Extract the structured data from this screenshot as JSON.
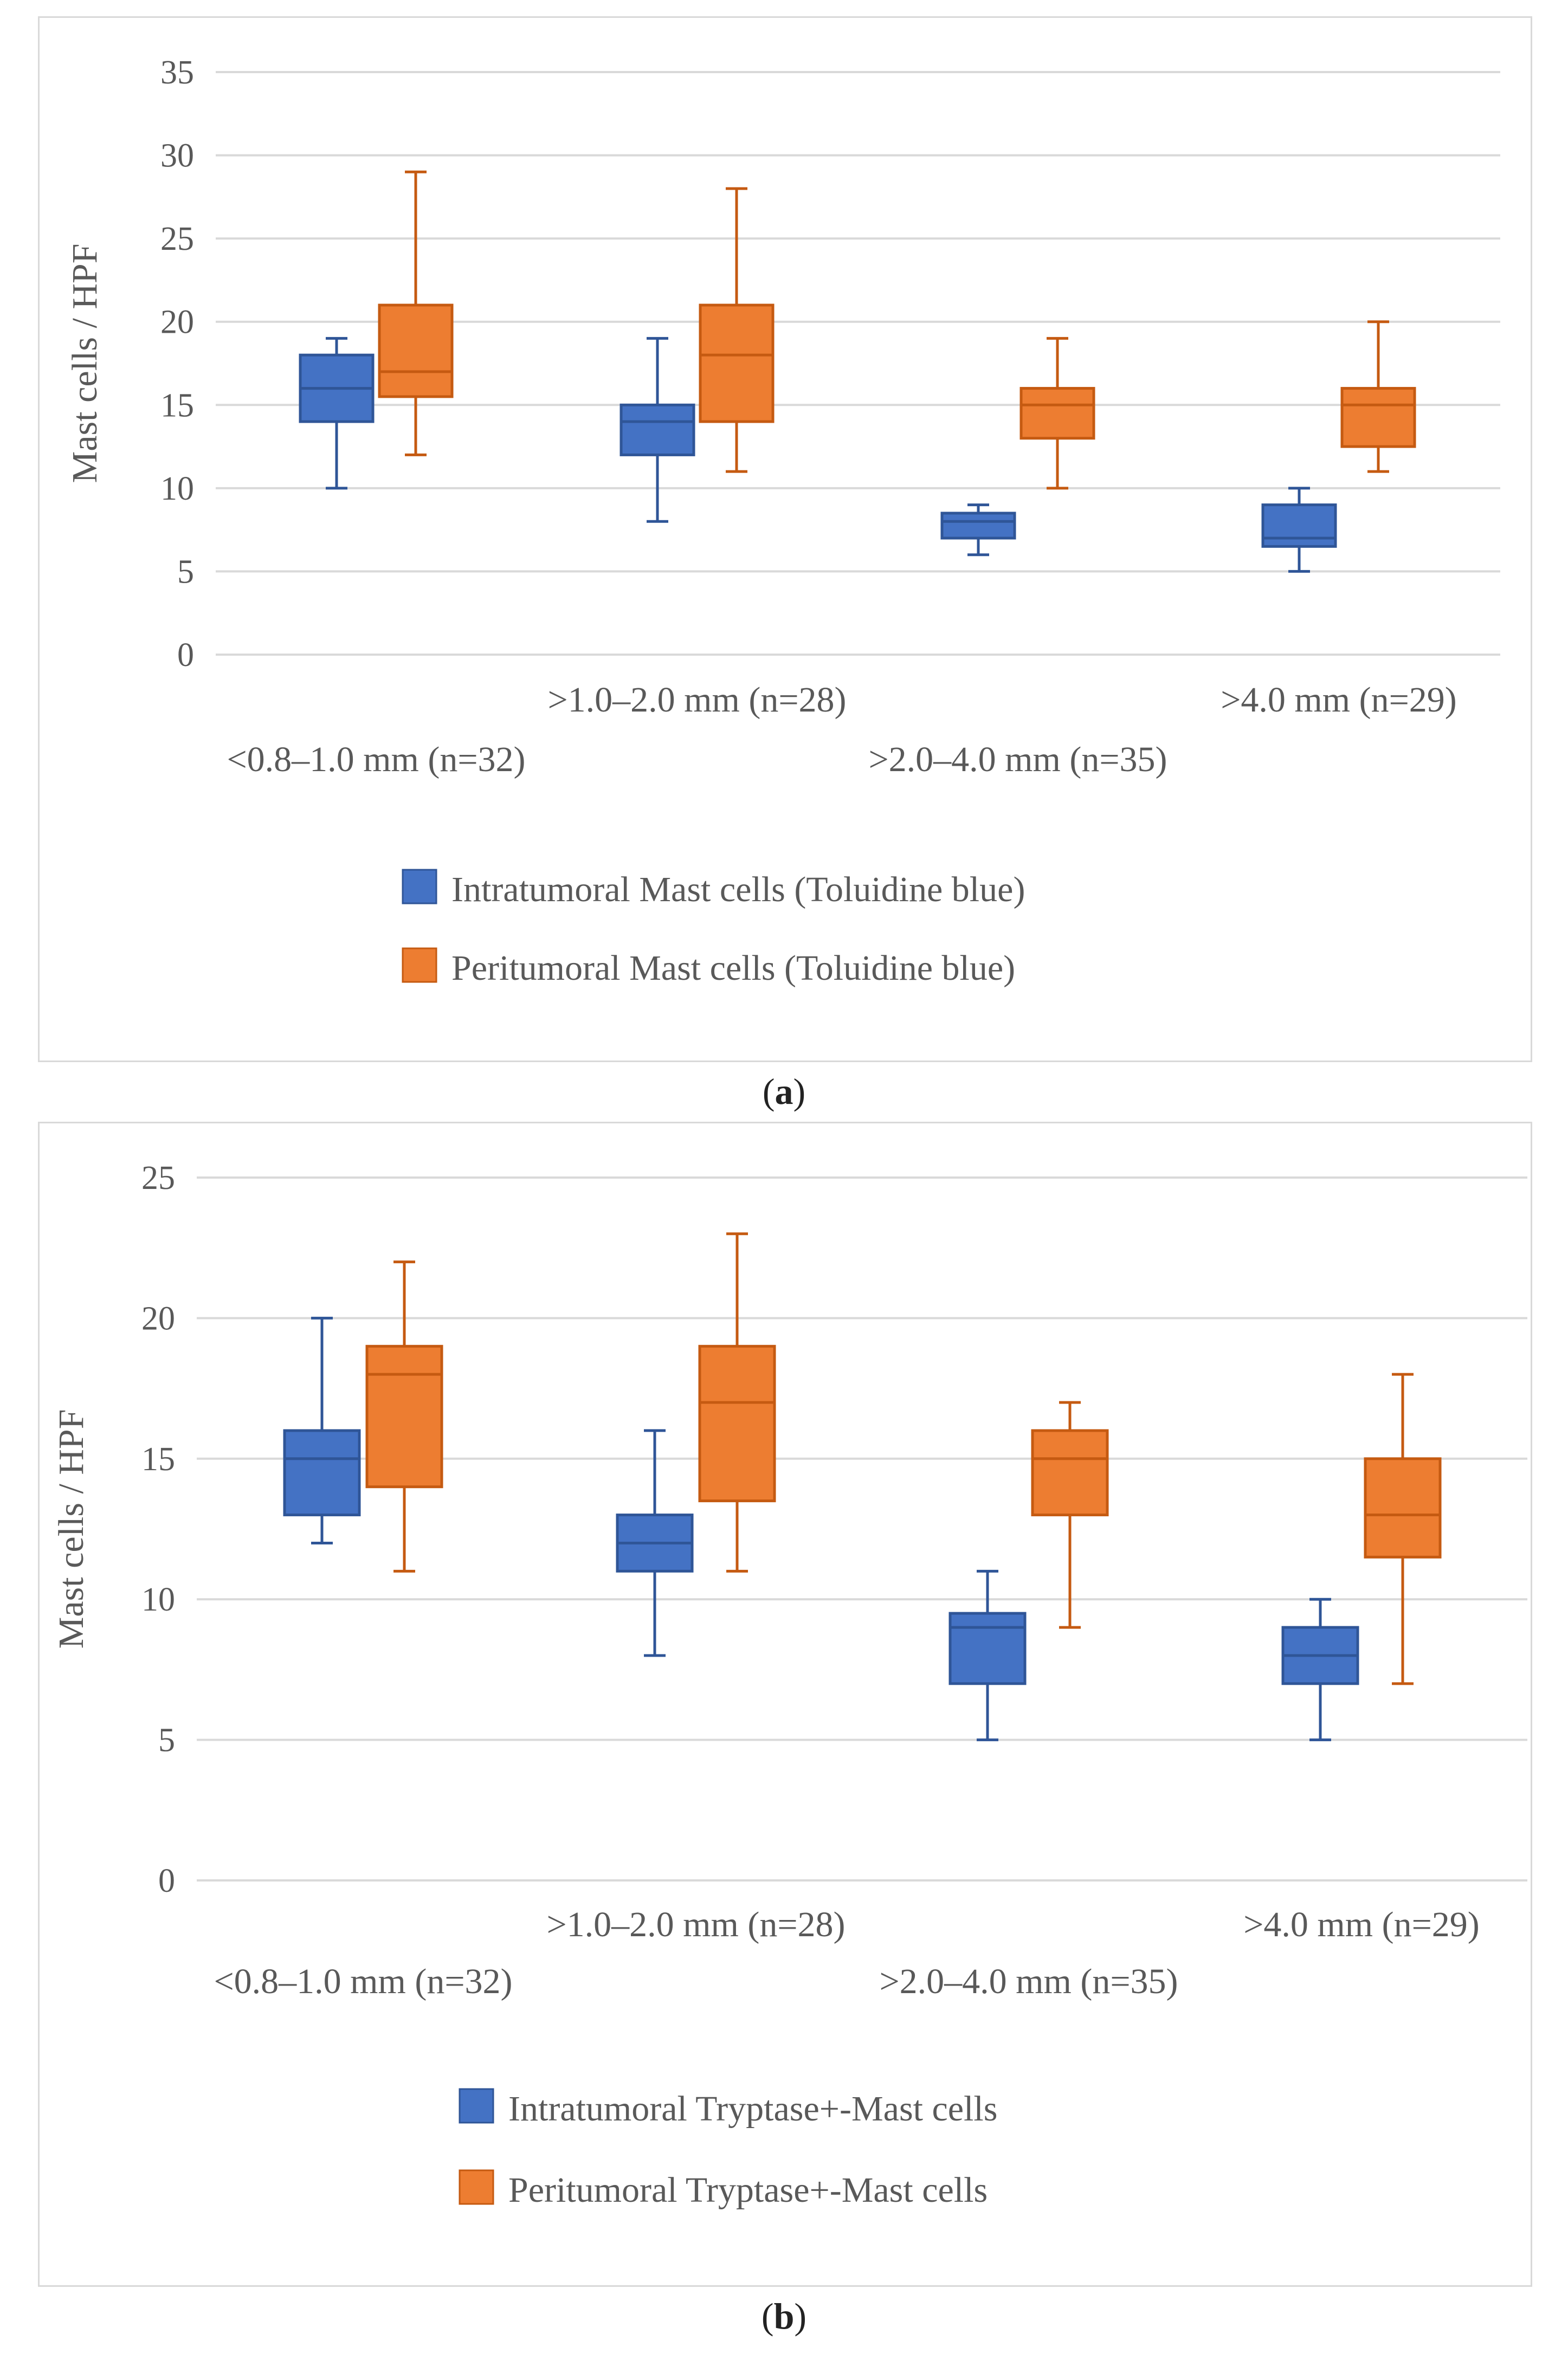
{
  "colors": {
    "intratumoral": "#4472c4",
    "peritumoral": "#ed7d31",
    "intratumoral_edge": "#2f5597",
    "peritumoral_edge": "#c55a11",
    "grid": "#d9d9d9",
    "text": "#595959"
  },
  "chart_data": [
    {
      "type": "box",
      "panel": "a",
      "caption": "a",
      "ylabel": "Mast cells / HPF",
      "xlabel": "",
      "ylim": [
        0,
        35
      ],
      "yticks": [
        0,
        5,
        10,
        15,
        20,
        25,
        30,
        35
      ],
      "grid": true,
      "legend_position": "bottom",
      "categories": [
        "<0.8–1.0 mm (n=32)",
        ">1.0–2.0 mm (n=28)",
        ">2.0–4.0 mm (n=35)",
        ">4.0 mm (n=29)"
      ],
      "series": [
        {
          "name": "Intratumoral Mast cells (Toluidine blue)",
          "key": "intratumoral",
          "boxes": [
            {
              "min": 10,
              "q1": 14,
              "median": 16,
              "q3": 18,
              "max": 19
            },
            {
              "min": 8,
              "q1": 12,
              "median": 14,
              "q3": 15,
              "max": 19
            },
            {
              "min": 6,
              "q1": 7,
              "median": 8,
              "q3": 8.5,
              "max": 9
            },
            {
              "min": 5,
              "q1": 6.5,
              "median": 7,
              "q3": 9,
              "max": 10
            }
          ]
        },
        {
          "name": "Peritumoral Mast cells (Toluidine blue)",
          "key": "peritumoral",
          "boxes": [
            {
              "min": 12,
              "q1": 15.5,
              "median": 17,
              "q3": 21,
              "max": 29
            },
            {
              "min": 11,
              "q1": 14,
              "median": 18,
              "q3": 21,
              "max": 28
            },
            {
              "min": 10,
              "q1": 13,
              "median": 15,
              "q3": 16,
              "max": 19
            },
            {
              "min": 11,
              "q1": 12.5,
              "median": 15,
              "q3": 16,
              "max": 20
            }
          ]
        }
      ]
    },
    {
      "type": "box",
      "panel": "b",
      "caption": "b",
      "ylabel": "Mast cells / HPF",
      "xlabel": "",
      "ylim": [
        0,
        25
      ],
      "yticks": [
        0,
        5,
        10,
        15,
        20,
        25
      ],
      "grid": true,
      "legend_position": "bottom",
      "categories": [
        "<0.8–1.0 mm (n=32)",
        ">1.0–2.0 mm (n=28)",
        ">2.0–4.0 mm (n=35)",
        ">4.0 mm (n=29)"
      ],
      "series": [
        {
          "name": "Intratumoral Tryptase+-Mast cells",
          "key": "intratumoral",
          "boxes": [
            {
              "min": 12,
              "q1": 13,
              "median": 15,
              "q3": 16,
              "max": 20
            },
            {
              "min": 8,
              "q1": 11,
              "median": 12,
              "q3": 13,
              "max": 16
            },
            {
              "min": 5,
              "q1": 7,
              "median": 9,
              "q3": 9.5,
              "max": 11
            },
            {
              "min": 5,
              "q1": 7,
              "median": 8,
              "q3": 9,
              "max": 10
            }
          ]
        },
        {
          "name": "Peritumoral Tryptase+-Mast cells",
          "key": "peritumoral",
          "boxes": [
            {
              "min": 11,
              "q1": 14,
              "median": 18,
              "q3": 19,
              "max": 22
            },
            {
              "min": 11,
              "q1": 13.5,
              "median": 17,
              "q3": 19,
              "max": 23
            },
            {
              "min": 9,
              "q1": 13,
              "median": 15,
              "q3": 16,
              "max": 17
            },
            {
              "min": 7,
              "q1": 11.5,
              "median": 13,
              "q3": 15,
              "max": 18
            }
          ]
        }
      ]
    }
  ]
}
